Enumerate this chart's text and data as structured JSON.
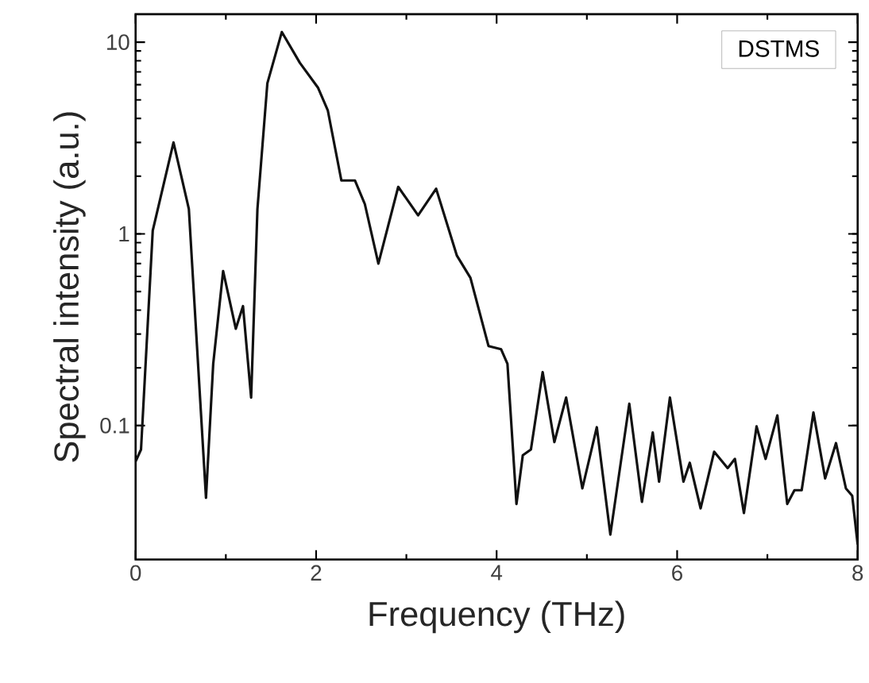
{
  "chart_data": {
    "type": "line",
    "xlabel": "Frequency (THz)",
    "ylabel": "Spectral intensity (a.u.)",
    "log": "y",
    "legend": "top right",
    "xlim": [
      0,
      8
    ],
    "ylim": [
      0.02,
      14
    ],
    "xticks": [
      0,
      2,
      4,
      6,
      8
    ],
    "yticks": [
      0.1,
      1,
      10
    ],
    "series": [
      {
        "name": "DSTMS",
        "color": "#111111",
        "x": [
          0,
          0.06,
          0.19,
          0.42,
          0.59,
          0.78,
          0.86,
          0.97,
          1.11,
          1.19,
          1.28,
          1.35,
          1.46,
          1.62,
          1.82,
          2.02,
          2.13,
          2.28,
          2.43,
          2.54,
          2.69,
          2.91,
          3.13,
          3.33,
          3.56,
          3.71,
          3.91,
          4.05,
          4.12,
          4.22,
          4.29,
          4.38,
          4.51,
          4.64,
          4.77,
          4.95,
          5.11,
          5.26,
          5.47,
          5.61,
          5.73,
          5.8,
          5.92,
          6.07,
          6.14,
          6.26,
          6.41,
          6.56,
          6.64,
          6.74,
          6.88,
          6.98,
          7.11,
          7.22,
          7.3,
          7.38,
          7.51,
          7.64,
          7.76,
          7.87,
          7.94,
          8.0
        ],
        "values": [
          0.065,
          0.075,
          1.04,
          3.0,
          1.35,
          0.042,
          0.21,
          0.64,
          0.32,
          0.42,
          0.14,
          1.35,
          6.1,
          11.3,
          7.8,
          5.8,
          4.4,
          1.9,
          1.9,
          1.43,
          0.7,
          1.76,
          1.25,
          1.72,
          0.77,
          0.59,
          0.26,
          0.25,
          0.21,
          0.039,
          0.07,
          0.075,
          0.19,
          0.082,
          0.14,
          0.047,
          0.098,
          0.027,
          0.13,
          0.04,
          0.092,
          0.051,
          0.14,
          0.051,
          0.064,
          0.037,
          0.073,
          0.06,
          0.067,
          0.035,
          0.099,
          0.067,
          0.113,
          0.039,
          0.046,
          0.046,
          0.117,
          0.053,
          0.081,
          0.047,
          0.043,
          0.024
        ]
      }
    ]
  }
}
